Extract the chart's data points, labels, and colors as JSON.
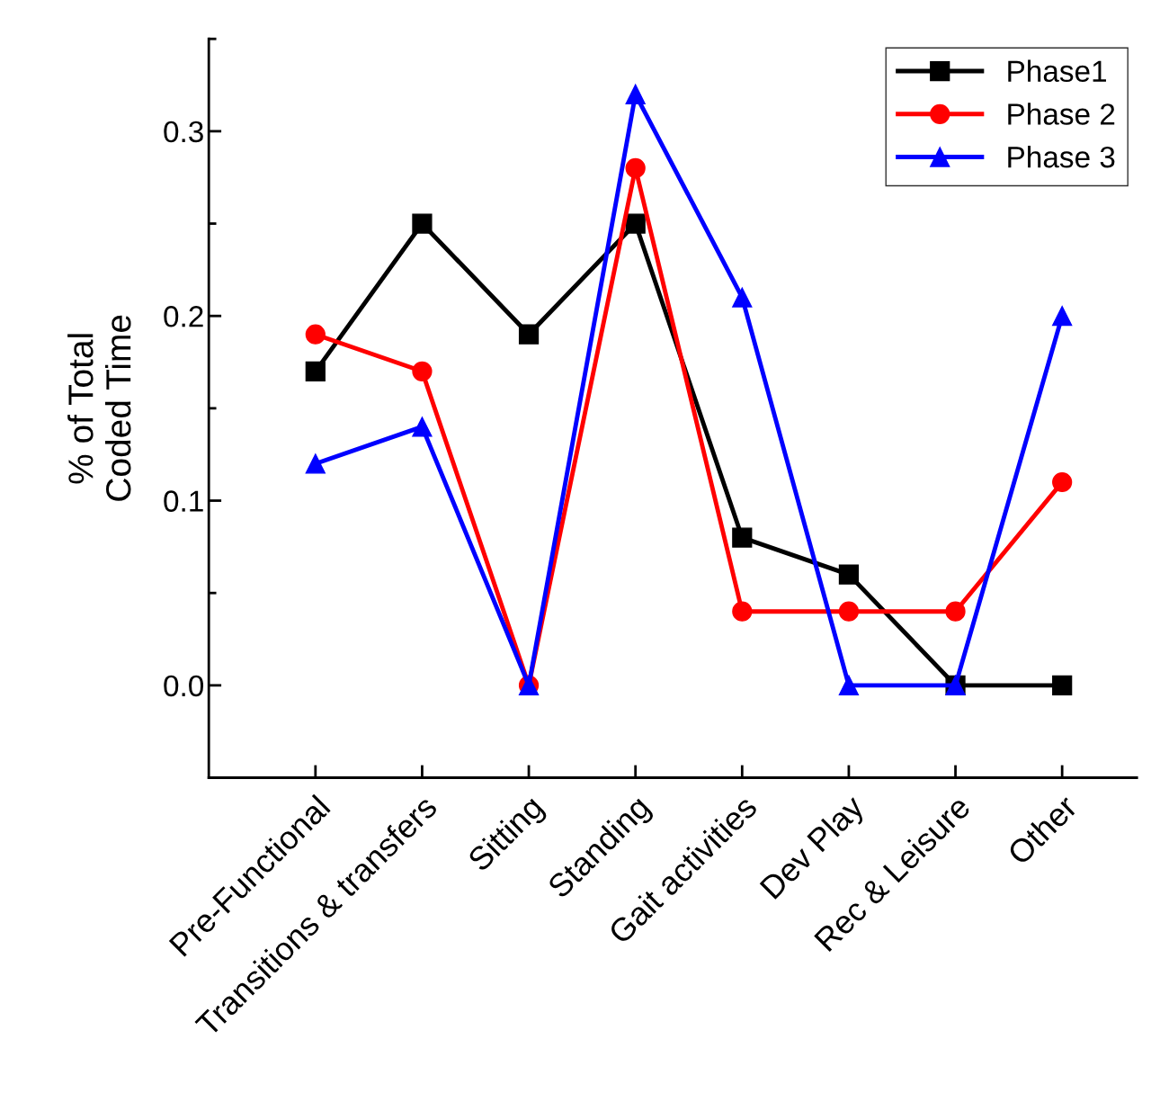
{
  "chart_data": {
    "type": "line",
    "ylabel": "% of Total\nCoded Time",
    "categories": [
      "Pre-Functional",
      "Transitions & transfers",
      "Sitting",
      "Standing",
      "Gait activities",
      "Dev Play",
      "Rec & Leisure",
      "Other"
    ],
    "series": [
      {
        "name": "Phase1",
        "color": "#000000",
        "marker": "square",
        "values": [
          0.17,
          0.25,
          0.19,
          0.25,
          0.08,
          0.06,
          0,
          0
        ]
      },
      {
        "name": "Phase 2",
        "color": "#ff0000",
        "marker": "circle",
        "values": [
          0.19,
          0.17,
          0,
          0.28,
          0.04,
          0.04,
          0.04,
          0.11
        ]
      },
      {
        "name": "Phase 3",
        "color": "#0000ff",
        "marker": "triangle",
        "values": [
          0.12,
          0.14,
          0,
          0.32,
          0.21,
          0,
          0,
          0.2
        ]
      }
    ],
    "ylim": [
      -0.05,
      0.35
    ],
    "yticks": [
      {
        "value": 0,
        "label": "0.0"
      },
      {
        "value": 0.1,
        "label": "0.1"
      },
      {
        "value": 0.2,
        "label": "0.2"
      },
      {
        "value": 0.3,
        "label": "0.3"
      }
    ],
    "legend": "top right",
    "grid": false,
    "line_style": "solid"
  }
}
